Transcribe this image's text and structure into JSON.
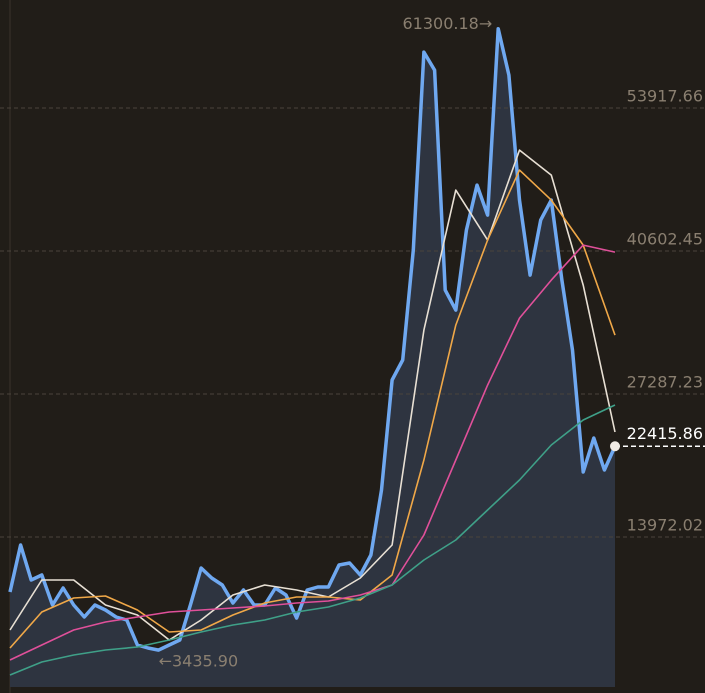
{
  "chart_data": {
    "type": "line",
    "ylim": [
      0,
      63970
    ],
    "yticks": [
      13972.02,
      27287.23,
      40602.45,
      53917.66
    ],
    "grid": true,
    "xlim": [
      0,
      57
    ],
    "max_label": "61300.18→",
    "min_label": "←3435.90",
    "series": [
      {
        "color": "#6fa8f0",
        "area": true,
        "values": [
          8845,
          13220,
          9962,
          10427,
          7634,
          9217,
          7634,
          6517,
          7634,
          7169,
          6517,
          6238,
          3910,
          3631,
          3435.9,
          3910,
          4376,
          7634,
          11079,
          10148,
          9496,
          7820,
          9031,
          7634,
          7634,
          9217,
          8565,
          6424,
          9031,
          9310,
          9310,
          11358,
          11544,
          10427,
          12289,
          18341,
          28582,
          30444,
          40685,
          59118,
          57443,
          36961,
          35099,
          42547,
          46736,
          43943,
          61300.18,
          56977,
          45340,
          38357,
          43478,
          45340,
          37892,
          31375,
          20017,
          23182,
          20203,
          22415.86
        ]
      },
      {
        "color": "#e8e0d4",
        "x": [
          0,
          3,
          6,
          9,
          12,
          15,
          18,
          21,
          24,
          27,
          30,
          33,
          36,
          39,
          42,
          45,
          48,
          51,
          54,
          57
        ],
        "values": [
          5307,
          9962,
          9962,
          7634,
          6703,
          4376,
          6238,
          8565,
          9496,
          9031,
          8379,
          10148,
          13220,
          33237,
          46271,
          41616,
          49995,
          47667,
          37426,
          23741
        ]
      },
      {
        "color": "#f0a848",
        "x": [
          0,
          3,
          6,
          9,
          12,
          15,
          18,
          21,
          24,
          27,
          30,
          33,
          36,
          39,
          42,
          45,
          48,
          51,
          54,
          57
        ],
        "values": [
          3631,
          6983,
          8286,
          8472,
          7169,
          5121,
          5307,
          6703,
          7820,
          8379,
          8379,
          8100,
          10427,
          21134,
          33702,
          41616,
          48133,
          45340,
          41150,
          32771
        ]
      },
      {
        "color": "#e0509a",
        "x": [
          0,
          3,
          6,
          9,
          12,
          15,
          18,
          21,
          24,
          27,
          30,
          33,
          36,
          39,
          42,
          45,
          48,
          51,
          54,
          57
        ],
        "values": [
          2514,
          3910,
          5307,
          6052,
          6517,
          6983,
          7169,
          7355,
          7541,
          7820,
          8007,
          8565,
          9496,
          14151,
          21134,
          28116,
          34354,
          37892,
          41150,
          40499
        ]
      },
      {
        "color": "#3fa088",
        "x": [
          0,
          3,
          6,
          9,
          12,
          15,
          18,
          21,
          24,
          27,
          30,
          33,
          36,
          39,
          42,
          45,
          48,
          51,
          54,
          57
        ],
        "values": [
          1117,
          2328,
          2979,
          3445,
          3724,
          4376,
          5121,
          5772,
          6238,
          6983,
          7448,
          8286,
          9496,
          11824,
          13686,
          16479,
          19272,
          22530,
          24858,
          26254
        ]
      }
    ]
  }
}
